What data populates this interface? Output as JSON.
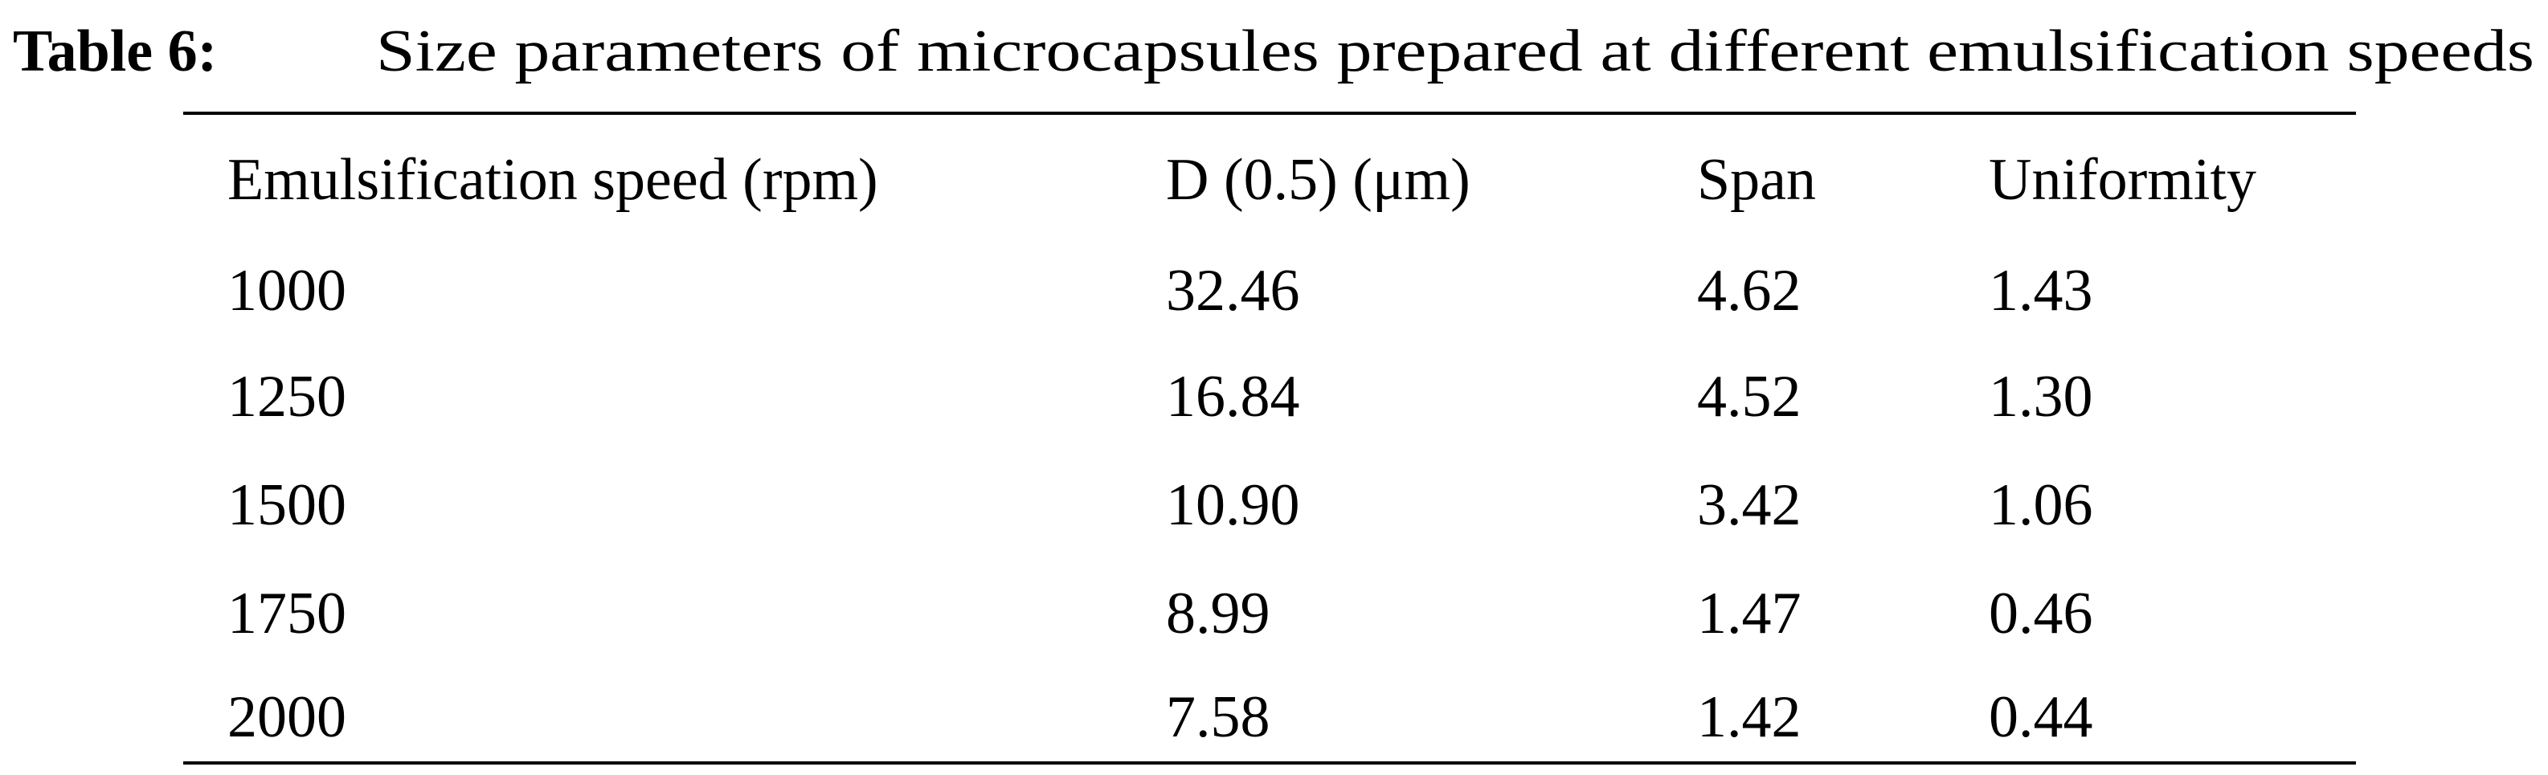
{
  "caption": {
    "label": "Table 6:",
    "text": "Size parameters of microcapsules prepared at different emulsification speeds"
  },
  "table": {
    "header": [
      "Emulsification speed (rpm)",
      "D (0.5) (μm)",
      "Span",
      "Uniformity"
    ],
    "rows": [
      [
        "1000",
        "32.46",
        "4.62",
        "1.43"
      ],
      [
        "1250",
        "16.84",
        "4.52",
        "1.30"
      ],
      [
        "1500",
        "10.90",
        "3.42",
        "1.06"
      ],
      [
        "1750",
        "8.99",
        "1.47",
        "0.46"
      ],
      [
        "2000",
        "7.58",
        "1.42",
        "0.44"
      ]
    ]
  }
}
